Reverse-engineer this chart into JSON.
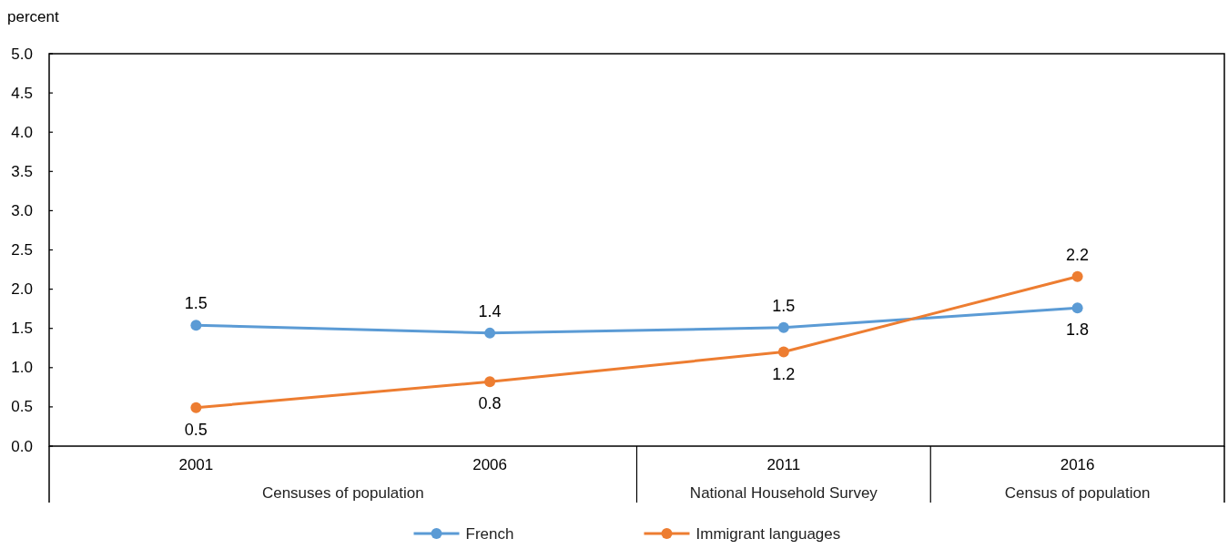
{
  "chart_data": {
    "type": "line",
    "ylabel": "percent",
    "categories": [
      "2001",
      "2006",
      "2011",
      "2016"
    ],
    "series": [
      {
        "name": "French",
        "color": "#5b9bd5",
        "values": [
          1.54,
          1.44,
          1.51,
          1.76
        ],
        "value_labels": [
          "1.5",
          "1.4",
          "1.5",
          "1.8"
        ]
      },
      {
        "name": "Immigrant languages",
        "color": "#ed7d31",
        "values": [
          0.49,
          0.82,
          1.2,
          2.16
        ],
        "value_labels": [
          "0.5",
          "0.8",
          "1.2",
          "2.2"
        ]
      }
    ],
    "ylim": [
      0,
      5
    ],
    "yticks": [
      {
        "value": 0,
        "label": "0.0"
      },
      0.5,
      {
        "value": 1,
        "label": "1.0"
      },
      1.5,
      {
        "value": 2,
        "label": "2.0"
      },
      2.5,
      {
        "value": 3,
        "label": "3.0"
      },
      3.5,
      {
        "value": 4,
        "label": "4.0"
      },
      4.5,
      {
        "value": 5,
        "label": "5.0"
      }
    ],
    "legend": "bottom",
    "marker": "circle",
    "line_style": "solid",
    "annotations": [
      "Censuses of population",
      "National Household Survey",
      "Census of population"
    ]
  }
}
